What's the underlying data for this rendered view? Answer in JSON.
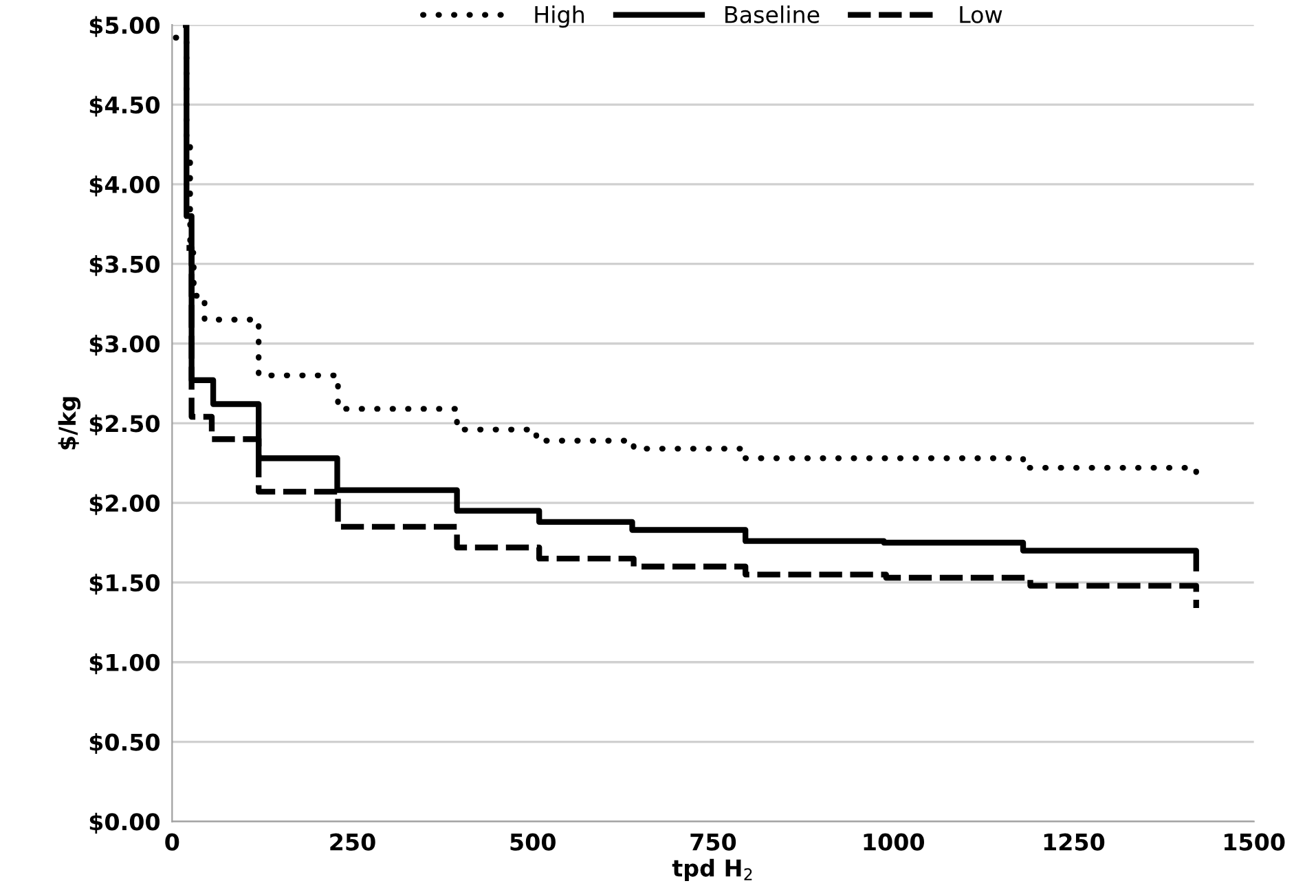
{
  "chart_data": {
    "type": "step",
    "xlabel": "tpd H$_{2}$",
    "ylabel": "$/kg",
    "series": [
      {
        "name": "High",
        "color": "#000000",
        "line_style": "dotted",
        "x": [
          5,
          20,
          25,
          30,
          45,
          120,
          230,
          395,
          505,
          640,
          795,
          1180,
          1420,
          1420
        ],
        "values": [
          4.92,
          4.3,
          3.57,
          3.3,
          3.15,
          2.8,
          2.59,
          2.46,
          2.39,
          2.34,
          2.28,
          2.22,
          2.22,
          2.14
        ]
      },
      {
        "name": "Baseline",
        "color": "#000000",
        "line_style": "solid",
        "x": [
          15,
          20,
          27,
          57,
          120,
          229,
          395,
          509,
          638,
          795,
          987,
          1180,
          1420,
          1420
        ],
        "values": [
          5.0,
          3.8,
          2.77,
          2.62,
          2.28,
          2.08,
          1.95,
          1.88,
          1.83,
          1.76,
          1.75,
          1.7,
          1.7,
          1.57
        ]
      },
      {
        "name": "Low",
        "color": "#000000",
        "line_style": "dashed",
        "x": [
          20,
          27,
          55,
          120,
          230,
          395,
          509,
          640,
          795,
          990,
          1190,
          1420,
          1420
        ],
        "values": [
          3.6,
          2.54,
          2.4,
          2.07,
          1.85,
          1.72,
          1.65,
          1.6,
          1.55,
          1.53,
          1.48,
          1.48,
          1.34
        ]
      }
    ],
    "xlim": [
      0,
      1500
    ],
    "xticks": [
      0,
      250,
      500,
      750,
      1000,
      1250,
      1500
    ],
    "ylim": [
      0,
      5
    ],
    "yticks": [
      {
        "value": 0,
        "label": "$0.00"
      },
      {
        "value": 0.5,
        "label": "$0.50"
      },
      {
        "value": 1,
        "label": "$1.00"
      },
      {
        "value": 1.5,
        "label": "$1.50"
      },
      {
        "value": 2,
        "label": "$2.00"
      },
      {
        "value": 2.5,
        "label": "$2.50"
      },
      {
        "value": 3,
        "label": "$3.00"
      },
      {
        "value": 3.5,
        "label": "$3.50"
      },
      {
        "value": 4,
        "label": "$4.00"
      },
      {
        "value": 4.5,
        "label": "$4.50"
      },
      {
        "value": 5,
        "label": "$5.00"
      }
    ],
    "grid": "y",
    "legend": "top"
  }
}
